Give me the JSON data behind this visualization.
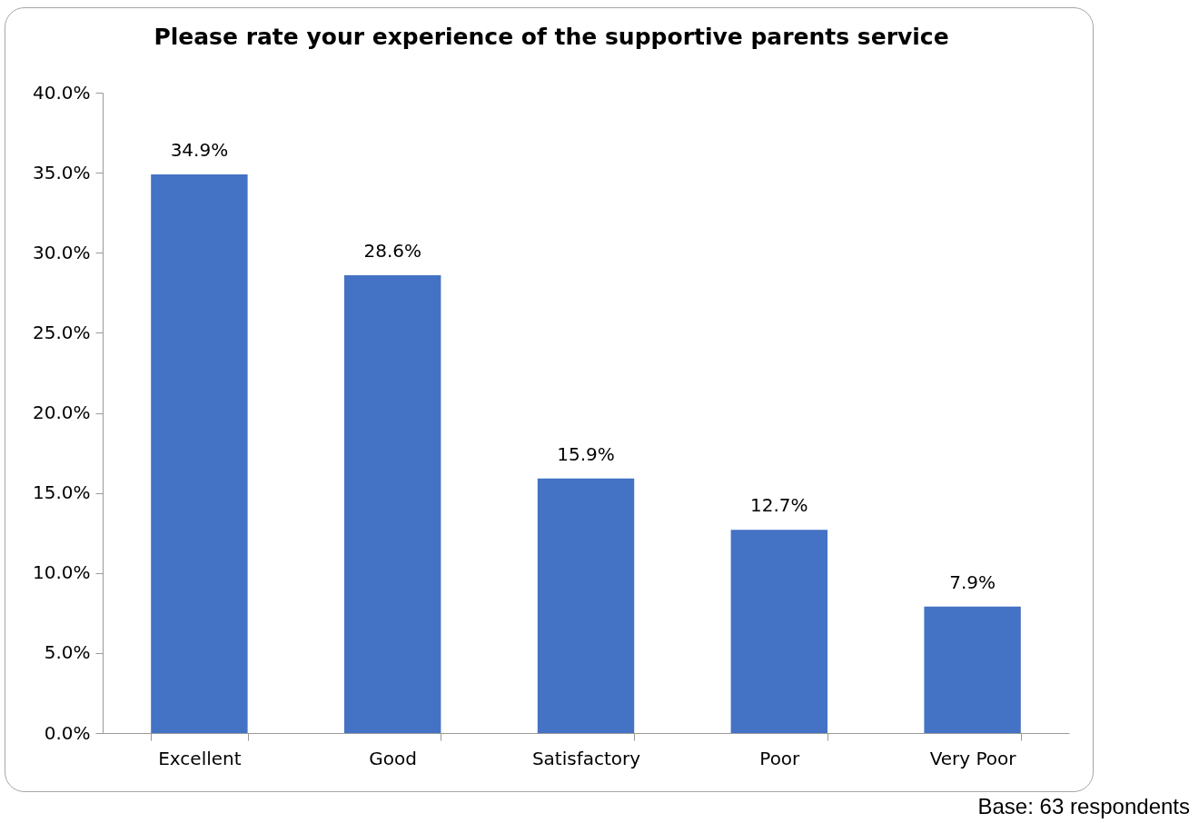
{
  "chart_data": {
    "type": "bar",
    "title": "Please rate your experience of the supportive parents service",
    "categories": [
      "Excellent",
      "Good",
      "Satisfactory",
      "Poor",
      "Very Poor"
    ],
    "values": [
      34.9,
      28.6,
      15.9,
      12.7,
      7.9
    ],
    "value_labels": [
      "34.9%",
      "28.6%",
      "15.9%",
      "12.7%",
      "7.9%"
    ],
    "color": "#4472c4",
    "ylim": [
      0,
      40
    ],
    "yticks": [
      {
        "value": 0,
        "label": "0.0%"
      },
      {
        "value": 5,
        "label": "5.0%"
      },
      {
        "value": 10,
        "label": "10.0%"
      },
      {
        "value": 15,
        "label": "15.0%"
      },
      {
        "value": 20,
        "label": "20.0%"
      },
      {
        "value": 25,
        "label": "25.0%"
      },
      {
        "value": 30,
        "label": "30.0%"
      },
      {
        "value": 35,
        "label": "35.0%"
      },
      {
        "value": 40,
        "label": "40.0%"
      }
    ],
    "annotations": [
      "Base: 63 respondents"
    ]
  }
}
